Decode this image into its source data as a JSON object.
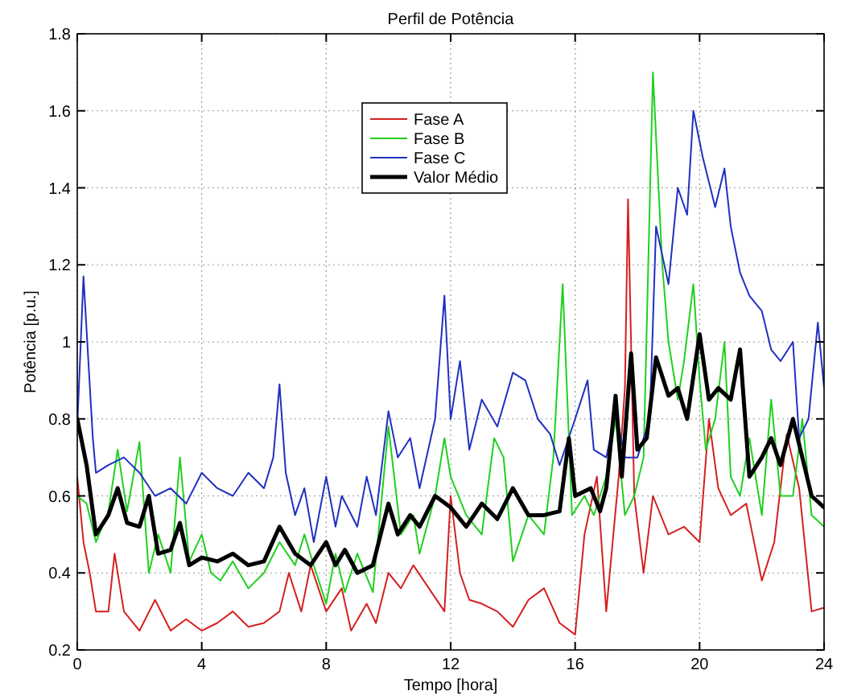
{
  "chart_data": {
    "type": "line",
    "title": "Perfil de Potência",
    "xlabel": "Tempo [hora]",
    "ylabel": "Potência [p.u.]",
    "xlim": [
      0,
      24
    ],
    "xticks": [
      0,
      4,
      8,
      12,
      16,
      20,
      24
    ],
    "ylim": [
      0.2,
      1.8
    ],
    "yticks": [
      {
        "value": 0.2,
        "label": "0.2"
      },
      {
        "value": 0.4,
        "label": "0.4"
      },
      {
        "value": 0.6,
        "label": "0.6"
      },
      {
        "value": 0.8,
        "label": "0.8"
      },
      {
        "value": 1,
        "label": "1"
      },
      {
        "value": 1.2,
        "label": "1.2"
      },
      {
        "value": 1.4,
        "label": "1.4"
      },
      {
        "value": 1.6,
        "label": "1.6"
      },
      {
        "value": 1.8,
        "label": "1.8"
      }
    ],
    "grid": true,
    "legend": "top",
    "marker": "none",
    "line_style": "solid",
    "series": [
      {
        "name": "Fase A",
        "color": "#d42020",
        "x": [
          0,
          0.2,
          0.4,
          0.6,
          1,
          1.2,
          1.5,
          2,
          2.5,
          3,
          3.5,
          4,
          4.5,
          5,
          5.5,
          6,
          6.5,
          6.8,
          7.2,
          7.5,
          8,
          8.5,
          8.8,
          9.3,
          9.6,
          10,
          10.4,
          10.8,
          11.3,
          11.8,
          12,
          12.3,
          12.6,
          13,
          13.5,
          14,
          14.5,
          15,
          15.5,
          16,
          16.3,
          16.7,
          17,
          17.4,
          17.6,
          17.7,
          17.9,
          18.2,
          18.5,
          19,
          19.5,
          20,
          20.3,
          20.6,
          21,
          21.5,
          22,
          22.4,
          22.8,
          23.2,
          23.6,
          24
        ],
        "values": [
          0.65,
          0.48,
          0.4,
          0.3,
          0.3,
          0.45,
          0.3,
          0.25,
          0.33,
          0.25,
          0.28,
          0.25,
          0.27,
          0.3,
          0.26,
          0.27,
          0.3,
          0.4,
          0.3,
          0.42,
          0.3,
          0.36,
          0.25,
          0.32,
          0.27,
          0.4,
          0.36,
          0.42,
          0.36,
          0.3,
          0.6,
          0.4,
          0.33,
          0.32,
          0.3,
          0.26,
          0.33,
          0.36,
          0.27,
          0.24,
          0.5,
          0.65,
          0.3,
          0.65,
          0.88,
          1.37,
          0.6,
          0.4,
          0.6,
          0.5,
          0.52,
          0.48,
          0.8,
          0.62,
          0.55,
          0.58,
          0.38,
          0.48,
          0.76,
          0.62,
          0.3,
          0.31
        ]
      },
      {
        "name": "Fase B",
        "color": "#20d020",
        "x": [
          0,
          0.3,
          0.6,
          1,
          1.3,
          1.6,
          2,
          2.3,
          2.6,
          3,
          3.3,
          3.6,
          4,
          4.3,
          4.6,
          5,
          5.5,
          6,
          6.5,
          7,
          7.3,
          7.6,
          8,
          8.3,
          8.6,
          9,
          9.5,
          10,
          10.4,
          10.8,
          11,
          11.5,
          11.8,
          12,
          12.5,
          13,
          13.4,
          13.7,
          14,
          14.5,
          15,
          15.3,
          15.6,
          15.9,
          16.3,
          16.6,
          17,
          17.3,
          17.6,
          17.9,
          18.2,
          18.5,
          18.8,
          19,
          19.3,
          19.5,
          19.8,
          20,
          20.2,
          20.5,
          20.8,
          21,
          21.3,
          21.6,
          22,
          22.3,
          22.6,
          23,
          23.3,
          23.6,
          24
        ],
        "values": [
          0.6,
          0.58,
          0.48,
          0.56,
          0.72,
          0.56,
          0.74,
          0.4,
          0.5,
          0.4,
          0.7,
          0.43,
          0.5,
          0.4,
          0.38,
          0.43,
          0.36,
          0.4,
          0.48,
          0.42,
          0.5,
          0.42,
          0.32,
          0.45,
          0.35,
          0.45,
          0.35,
          0.78,
          0.5,
          0.55,
          0.45,
          0.6,
          0.75,
          0.65,
          0.55,
          0.5,
          0.75,
          0.7,
          0.43,
          0.55,
          0.5,
          0.7,
          1.15,
          0.55,
          0.6,
          0.55,
          0.65,
          0.8,
          0.55,
          0.6,
          0.7,
          1.7,
          1.2,
          1,
          0.85,
          0.95,
          1.15,
          0.9,
          0.72,
          0.8,
          1,
          0.65,
          0.6,
          0.75,
          0.55,
          0.85,
          0.6,
          0.6,
          0.8,
          0.55,
          0.52
        ]
      },
      {
        "name": "Fase C",
        "color": "#2030c0",
        "x": [
          0,
          0.2,
          0.5,
          0.6,
          1,
          1.5,
          2,
          2.5,
          3,
          3.5,
          4,
          4.5,
          5,
          5.5,
          6,
          6.3,
          6.5,
          6.7,
          7,
          7.3,
          7.6,
          8,
          8.3,
          8.5,
          9,
          9.3,
          9.6,
          10,
          10.3,
          10.7,
          11,
          11.5,
          11.8,
          12,
          12.3,
          12.6,
          13,
          13.5,
          14,
          14.4,
          14.8,
          15.2,
          15.5,
          16,
          16.4,
          16.6,
          17,
          17.3,
          17.6,
          18,
          18.4,
          18.6,
          19,
          19.3,
          19.6,
          19.8,
          20.1,
          20.5,
          20.8,
          21,
          21.3,
          21.6,
          22,
          22.3,
          22.6,
          23,
          23.2,
          23.5,
          23.8,
          24
        ],
        "values": [
          0.78,
          1.17,
          0.75,
          0.66,
          0.68,
          0.7,
          0.66,
          0.6,
          0.62,
          0.58,
          0.66,
          0.62,
          0.6,
          0.66,
          0.62,
          0.7,
          0.89,
          0.66,
          0.55,
          0.62,
          0.48,
          0.65,
          0.52,
          0.6,
          0.52,
          0.65,
          0.55,
          0.82,
          0.7,
          0.75,
          0.62,
          0.8,
          1.12,
          0.8,
          0.95,
          0.72,
          0.85,
          0.78,
          0.92,
          0.9,
          0.8,
          0.76,
          0.68,
          0.8,
          0.9,
          0.72,
          0.7,
          0.82,
          0.7,
          0.7,
          0.8,
          1.3,
          1.15,
          1.4,
          1.33,
          1.6,
          1.48,
          1.35,
          1.45,
          1.3,
          1.18,
          1.12,
          1.08,
          0.98,
          0.95,
          1,
          0.75,
          0.8,
          1.05,
          0.88
        ]
      },
      {
        "name": "Valor Médio",
        "color": "#000000",
        "x": [
          0,
          0.3,
          0.6,
          1,
          1.3,
          1.6,
          2,
          2.3,
          2.6,
          3,
          3.3,
          3.6,
          4,
          4.5,
          5,
          5.5,
          6,
          6.5,
          7,
          7.5,
          8,
          8.3,
          8.6,
          9,
          9.5,
          10,
          10.3,
          10.7,
          11,
          11.5,
          12,
          12.5,
          13,
          13.5,
          14,
          14.5,
          15,
          15.5,
          15.8,
          16,
          16.5,
          16.8,
          17,
          17.3,
          17.5,
          17.8,
          18,
          18.3,
          18.6,
          19,
          19.3,
          19.6,
          20,
          20.3,
          20.6,
          21,
          21.3,
          21.6,
          22,
          22.3,
          22.6,
          23,
          23.3,
          23.6,
          24
        ],
        "values": [
          0.8,
          0.68,
          0.5,
          0.55,
          0.62,
          0.53,
          0.52,
          0.6,
          0.45,
          0.46,
          0.53,
          0.42,
          0.44,
          0.43,
          0.45,
          0.42,
          0.43,
          0.52,
          0.45,
          0.42,
          0.48,
          0.42,
          0.46,
          0.4,
          0.42,
          0.58,
          0.5,
          0.55,
          0.52,
          0.6,
          0.57,
          0.52,
          0.58,
          0.54,
          0.62,
          0.55,
          0.55,
          0.56,
          0.75,
          0.6,
          0.62,
          0.56,
          0.62,
          0.86,
          0.65,
          0.97,
          0.72,
          0.75,
          0.96,
          0.86,
          0.88,
          0.8,
          1.02,
          0.85,
          0.88,
          0.85,
          0.98,
          0.65,
          0.7,
          0.75,
          0.68,
          0.8,
          0.7,
          0.6,
          0.57
        ]
      }
    ]
  }
}
